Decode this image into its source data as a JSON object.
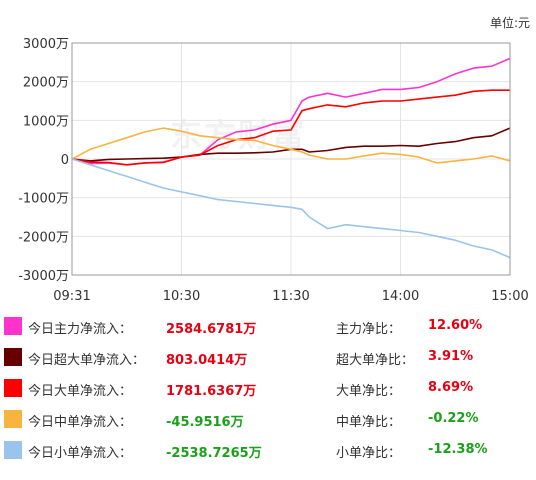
{
  "unit_label": "单位:元",
  "chart_data": {
    "type": "line",
    "ylim": [
      -3000,
      3000
    ],
    "y_ticks": [
      "3000万",
      "2000万",
      "1000万",
      "0",
      "-1000万",
      "-2000万",
      "-3000万"
    ],
    "y_tick_values": [
      3000,
      2000,
      1000,
      0,
      -1000,
      -2000,
      -3000
    ],
    "x_ticks": [
      "09:31",
      "10:30",
      "11:30",
      "14:00",
      "15:00"
    ],
    "x_tick_values": [
      0,
      60,
      120,
      180,
      240
    ],
    "x": [
      0,
      10,
      20,
      30,
      40,
      50,
      60,
      70,
      80,
      90,
      100,
      110,
      120,
      126,
      130,
      140,
      150,
      160,
      170,
      180,
      190,
      200,
      210,
      220,
      230,
      240
    ],
    "series": [
      {
        "color": "#ff33cc",
        "values": [
          0,
          -120,
          -100,
          -150,
          -100,
          -80,
          50,
          100,
          500,
          700,
          750,
          900,
          1000,
          1500,
          1600,
          1700,
          1600,
          1700,
          1800,
          1800,
          1850,
          2000,
          2200,
          2350,
          2400,
          2600
        ]
      },
      {
        "color": "#660000",
        "values": [
          0,
          -50,
          -10,
          0,
          10,
          20,
          50,
          120,
          150,
          150,
          160,
          180,
          250,
          250,
          180,
          220,
          300,
          330,
          330,
          350,
          330,
          400,
          450,
          550,
          600,
          800
        ]
      },
      {
        "color": "#ff0000",
        "values": [
          0,
          -80,
          -90,
          -150,
          -100,
          -90,
          50,
          100,
          350,
          500,
          550,
          720,
          750,
          1250,
          1300,
          1400,
          1350,
          1450,
          1500,
          1500,
          1550,
          1600,
          1650,
          1750,
          1780,
          1780
        ]
      },
      {
        "color": "#f7b43f",
        "values": [
          0,
          250,
          400,
          550,
          700,
          800,
          720,
          600,
          550,
          500,
          480,
          350,
          250,
          180,
          100,
          0,
          0,
          80,
          150,
          120,
          50,
          -100,
          -50,
          0,
          80,
          -50
        ]
      },
      {
        "color": "#99c4ec",
        "values": [
          0,
          -150,
          -300,
          -450,
          -600,
          -750,
          -850,
          -950,
          -1050,
          -1100,
          -1150,
          -1200,
          -1250,
          -1300,
          -1500,
          -1800,
          -1700,
          -1750,
          -1800,
          -1850,
          -1900,
          -2000,
          -2100,
          -2250,
          -2350,
          -2550
        ]
      }
    ]
  },
  "legend": [
    {
      "color": "#ff33cc",
      "label": "今日主力净流入：",
      "value": "2584.6781万",
      "sign": "pos",
      "ratio_label": "主力净比：",
      "ratio": "12.60%"
    },
    {
      "color": "#660000",
      "label": "今日超大单净流入：",
      "value": "803.0414万",
      "sign": "pos",
      "ratio_label": "超大单净比：",
      "ratio": "3.91%"
    },
    {
      "color": "#ff0000",
      "label": "今日大单净流入：",
      "value": "1781.6367万",
      "sign": "pos",
      "ratio_label": "大单净比：",
      "ratio": "8.69%"
    },
    {
      "color": "#f7b43f",
      "label": "今日中单净流入：",
      "value": "-45.9516万",
      "sign": "neg",
      "ratio_label": "中单净比：",
      "ratio": "-0.22%"
    },
    {
      "color": "#99c4ec",
      "label": "今日小单净流入：",
      "value": "-2538.7265万",
      "sign": "neg",
      "ratio_label": "小单净比：",
      "ratio": "-12.38%"
    }
  ]
}
